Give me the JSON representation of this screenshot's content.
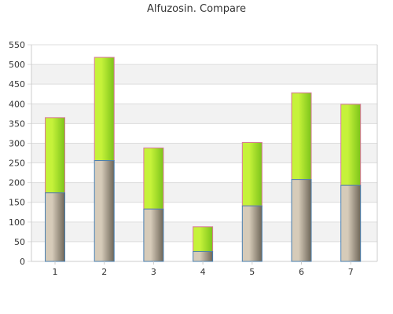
{
  "chart_data": {
    "type": "bar",
    "stacked": true,
    "title": "Alfuzosin. Compare",
    "xlabel": "",
    "ylabel": "",
    "categories": [
      "1",
      "2",
      "3",
      "4",
      "5",
      "6",
      "7"
    ],
    "series": [
      {
        "values": [
          174,
          256,
          133,
          25,
          141,
          208,
          193
        ]
      },
      {
        "values": [
          191,
          262,
          155,
          63,
          161,
          220,
          206
        ]
      }
    ],
    "ylim": [
      0,
      550
    ],
    "yticks": [
      0,
      50,
      100,
      150,
      200,
      250,
      300,
      350,
      400,
      450,
      500,
      550
    ],
    "grid": true,
    "legend": "none",
    "colors": {
      "band_alt": "#f2f2f2",
      "grid": "#dddddd",
      "axis": "#cccccc",
      "bottom_dark": "#6e6658",
      "bottom_light": "#d6cbb9",
      "bottom_edge": "#4a7fb0",
      "top_dark": "#7cc41a",
      "top_light": "#c6f23a",
      "top_edge": "#d9779a"
    }
  }
}
